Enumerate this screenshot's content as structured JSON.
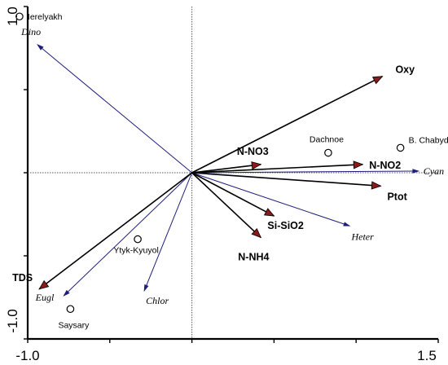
{
  "chart_data": {
    "type": "scatter",
    "title": "",
    "xlabel": "",
    "ylabel": "",
    "xlim": [
      -1.0,
      1.5
    ],
    "ylim": [
      -1.0,
      1.0
    ],
    "x_tick_labels": [
      "-1.0",
      "1.5"
    ],
    "y_tick_labels": [
      "1.0",
      "-1.0"
    ],
    "zero_lines": "dotted",
    "environmental_vectors": [
      {
        "name": "Oxy",
        "x": 1.16,
        "y": 0.58
      },
      {
        "name": "N-NO3",
        "x": 0.42,
        "y": 0.05
      },
      {
        "name": "N-NO2",
        "x": 1.04,
        "y": 0.05
      },
      {
        "name": "Ptot",
        "x": 1.15,
        "y": -0.08
      },
      {
        "name": "Si-SiO2",
        "x": 0.5,
        "y": -0.26
      },
      {
        "name": "N-NH4",
        "x": 0.42,
        "y": -0.39
      },
      {
        "name": "TDS",
        "x": -0.93,
        "y": -0.7
      }
    ],
    "species_vectors": [
      {
        "name": "Dino",
        "x": -0.94,
        "y": 0.77
      },
      {
        "name": "Cyan",
        "x": 1.38,
        "y": 0.01
      },
      {
        "name": "Heter",
        "x": 0.96,
        "y": -0.32
      },
      {
        "name": "Eugl",
        "x": -0.78,
        "y": -0.74
      },
      {
        "name": "Chlor",
        "x": -0.29,
        "y": -0.71
      }
    ],
    "sites": [
      {
        "name": "Ierelyakh",
        "x": -1.05,
        "y": 0.94
      },
      {
        "name": "Dachnoe",
        "x": 0.83,
        "y": 0.12
      },
      {
        "name": "B. Chabyda",
        "x": 1.27,
        "y": 0.15
      },
      {
        "name": "Ytyk-Kyuyol",
        "x": -0.33,
        "y": -0.4
      },
      {
        "name": "Saysary",
        "x": -0.74,
        "y": -0.82
      }
    ]
  },
  "colors": {
    "env_arrow_line": "#000000",
    "env_arrow_head": "#8b1a1a",
    "species_arrow": "#1f1f7a",
    "axis": "#000000"
  }
}
